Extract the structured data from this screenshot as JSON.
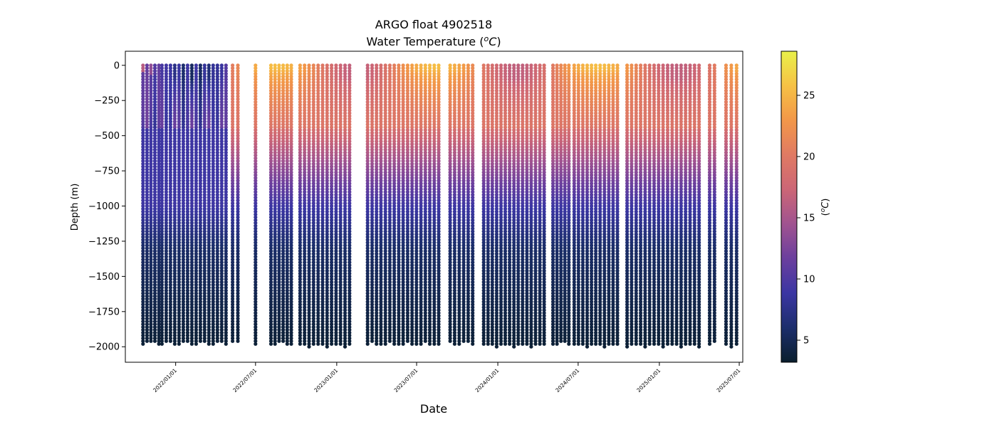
{
  "chart_data": {
    "type": "scatter",
    "title": "ARGO float 4902518",
    "subtitle": "Water Temperature (°C)",
    "subtitle_prefix": "Water Temperature (",
    "subtitle_unit_o": "o",
    "subtitle_unit_c": "C",
    "subtitle_suffix": ")",
    "xlabel": "Date",
    "ylabel": "Depth (m)",
    "colorbar_label": "(°C)",
    "colorbar_unit_o": "o",
    "colorbar_unit_c": "C",
    "x_ticks": [
      {
        "date": "2022-01-01",
        "label": "2022/01/01"
      },
      {
        "date": "2022-07-01",
        "label": "2022/07/01"
      },
      {
        "date": "2023-01-01",
        "label": "2023/01/01"
      },
      {
        "date": "2023-07-01",
        "label": "2023/07/01"
      },
      {
        "date": "2024-01-01",
        "label": "2024/01/01"
      },
      {
        "date": "2024-07-01",
        "label": "2024/07/01"
      },
      {
        "date": "2025-01-01",
        "label": "2025/01/01"
      },
      {
        "date": "2025-07-01",
        "label": "2025/07/01"
      }
    ],
    "xlim": [
      "2021-09-09",
      "2025-07-09"
    ],
    "y_ticks": [
      {
        "value": 0,
        "label": "0"
      },
      {
        "value": -250,
        "label": "−250"
      },
      {
        "value": -500,
        "label": "−500"
      },
      {
        "value": -750,
        "label": "−750"
      },
      {
        "value": -1000,
        "label": "−1000"
      },
      {
        "value": -1250,
        "label": "−1250"
      },
      {
        "value": -1500,
        "label": "−1500"
      },
      {
        "value": -1750,
        "label": "−1750"
      },
      {
        "value": -2000,
        "label": "−2000"
      }
    ],
    "ylim": [
      -2110,
      100
    ],
    "color_ticks": [
      {
        "value": 5,
        "label": "5"
      },
      {
        "value": 10,
        "label": "10"
      },
      {
        "value": 15,
        "label": "15"
      },
      {
        "value": 20,
        "label": "20"
      },
      {
        "value": 25,
        "label": "25"
      }
    ],
    "color_range": [
      3.2,
      28.6
    ],
    "colormap": [
      "#0a1e2d",
      "#1c2e6c",
      "#3b36a3",
      "#6b3f9e",
      "#a05390",
      "#cc6676",
      "#e07a63",
      "#f29749",
      "#f6c145",
      "#e9f14a"
    ],
    "profile_groups": [
      {
        "start": "2021-10-19",
        "end": "2021-11-24",
        "max_depth": -1985,
        "winter": true
      },
      {
        "start": "2021-12-01",
        "end": "2022-04-25",
        "max_depth": -1990,
        "winter": true
      },
      {
        "start": "2022-05-10",
        "end": "2022-05-22",
        "max_depth": -1985,
        "winter": false
      },
      {
        "start": "2022-07-01",
        "end": "2022-07-01",
        "max_depth": -2000,
        "winter": false
      },
      {
        "start": "2022-08-05",
        "end": "2022-09-20",
        "max_depth": -1990,
        "winter": false
      },
      {
        "start": "2022-10-10",
        "end": "2023-01-30",
        "max_depth": -2000,
        "winter": false
      },
      {
        "start": "2023-03-12",
        "end": "2023-08-20",
        "max_depth": -1995,
        "winter": false
      },
      {
        "start": "2023-09-15",
        "end": "2023-11-05",
        "max_depth": -1990,
        "winter": false
      },
      {
        "start": "2023-11-30",
        "end": "2024-04-15",
        "max_depth": -2000,
        "winter": false
      },
      {
        "start": "2024-05-05",
        "end": "2024-06-10",
        "max_depth": -1990,
        "winter": false
      },
      {
        "start": "2024-06-22",
        "end": "2024-09-28",
        "max_depth": -2000,
        "winter": false
      },
      {
        "start": "2024-10-20",
        "end": "2025-04-01",
        "max_depth": -2005,
        "winter": false
      },
      {
        "start": "2025-04-25",
        "end": "2025-05-06",
        "max_depth": -1990,
        "winter": false
      },
      {
        "start": "2025-06-01",
        "end": "2025-06-25",
        "max_depth": -2000,
        "winter": false
      }
    ]
  }
}
